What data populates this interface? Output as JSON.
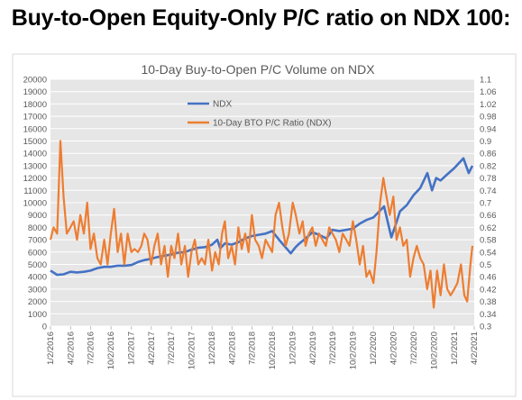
{
  "heading": "Buy-to-Open Equity-Only P/C ratio on NDX 100:",
  "chart_data": {
    "type": "line",
    "title": "10-Day Buy-to-Open P/C Volume on NDX",
    "xlabel": "",
    "ylabel": "",
    "ylim": [
      0,
      20000
    ],
    "y2lim": [
      0.3,
      1.1
    ],
    "yticks": [
      0,
      1000,
      2000,
      3000,
      4000,
      5000,
      6000,
      7000,
      8000,
      9000,
      10000,
      11000,
      12000,
      13000,
      14000,
      15000,
      16000,
      17000,
      18000,
      19000,
      20000
    ],
    "y2ticks": [
      "0.3",
      "0.34",
      "0.38",
      "0.42",
      "0.46",
      "0.5",
      "0.54",
      "0.58",
      "0.62",
      "0.66",
      "0.7",
      "0.74",
      "0.78",
      "0.82",
      "0.86",
      "0.9",
      "0.94",
      "0.98",
      "1.02",
      "1.06",
      "1.1"
    ],
    "xticks": [
      "1/2/2016",
      "4/2/2016",
      "7/2/2016",
      "10/2/2016",
      "1/2/2017",
      "4/2/2017",
      "7/2/2017",
      "10/2/2017",
      "1/2/2018",
      "4/2/2018",
      "7/2/2018",
      "10/2/2018",
      "1/2/2019",
      "4/2/2019",
      "7/2/2019",
      "10/2/2019",
      "1/2/2020",
      "4/2/2020",
      "7/2/2020",
      "10/2/2020",
      "1/2/2021",
      "4/2/2021"
    ],
    "grid": "horizontal",
    "legend_position": "top-left",
    "series": [
      {
        "name": "NDX",
        "axis": "left",
        "color": "#4472C4",
        "x": [
          "1/2/2016",
          "2/1/2016",
          "3/1/2016",
          "4/1/2016",
          "5/1/2016",
          "6/1/2016",
          "7/1/2016",
          "8/1/2016",
          "9/1/2016",
          "10/1/2016",
          "11/1/2016",
          "12/1/2016",
          "1/2/2017",
          "2/1/2017",
          "3/1/2017",
          "4/1/2017",
          "5/1/2017",
          "6/1/2017",
          "7/1/2017",
          "8/1/2017",
          "9/1/2017",
          "10/1/2017",
          "11/1/2017",
          "12/1/2017",
          "1/2/2018",
          "1/26/2018",
          "2/8/2018",
          "3/1/2018",
          "4/1/2018",
          "5/1/2018",
          "6/1/2018",
          "7/1/2018",
          "8/1/2018",
          "9/1/2018",
          "10/1/2018",
          "11/1/2018",
          "12/24/2018",
          "1/15/2019",
          "2/1/2019",
          "3/1/2019",
          "4/1/2019",
          "5/1/2019",
          "6/3/2019",
          "7/1/2019",
          "8/1/2019",
          "9/1/2019",
          "10/1/2019",
          "11/1/2019",
          "12/1/2019",
          "1/2/2020",
          "2/19/2020",
          "3/23/2020",
          "4/15/2020",
          "5/1/2020",
          "6/1/2020",
          "7/1/2020",
          "8/1/2020",
          "9/2/2020",
          "9/23/2020",
          "10/12/2020",
          "11/1/2020",
          "12/1/2020",
          "1/2/2021",
          "2/12/2021",
          "3/8/2021",
          "3/25/2021"
        ],
        "values": [
          4500,
          4150,
          4200,
          4400,
          4350,
          4400,
          4500,
          4700,
          4800,
          4800,
          4900,
          4900,
          4950,
          5200,
          5350,
          5450,
          5600,
          5700,
          5800,
          5950,
          6000,
          6200,
          6350,
          6400,
          6600,
          7000,
          6300,
          6700,
          6600,
          6800,
          7100,
          7300,
          7400,
          7500,
          7700,
          7000,
          5900,
          6400,
          6700,
          7100,
          7600,
          7400,
          7100,
          7800,
          7700,
          7800,
          7900,
          8300,
          8600,
          8800,
          9700,
          7200,
          8400,
          9300,
          9800,
          10600,
          11200,
          12400,
          11000,
          12000,
          11800,
          12300,
          12800,
          13600,
          12400,
          13000
        ]
      },
      {
        "name": "10-Day BTO P/C Ratio (NDX)",
        "axis": "right",
        "color": "#ED7D31",
        "x": [
          "1/2/2016",
          "1/16/2016",
          "2/1/2016",
          "2/16/2016",
          "3/1/2016",
          "3/16/2016",
          "4/1/2016",
          "4/16/2016",
          "5/1/2016",
          "5/16/2016",
          "6/1/2016",
          "6/16/2016",
          "7/1/2016",
          "7/16/2016",
          "8/1/2016",
          "8/16/2016",
          "9/1/2016",
          "9/16/2016",
          "10/1/2016",
          "10/16/2016",
          "11/1/2016",
          "11/16/2016",
          "12/1/2016",
          "12/16/2016",
          "1/2/2017",
          "1/16/2017",
          "2/1/2017",
          "2/16/2017",
          "3/1/2017",
          "3/16/2017",
          "4/1/2017",
          "4/16/2017",
          "5/1/2017",
          "5/16/2017",
          "6/1/2017",
          "6/16/2017",
          "7/1/2017",
          "7/16/2017",
          "8/1/2017",
          "8/16/2017",
          "9/1/2017",
          "9/16/2017",
          "10/1/2017",
          "10/16/2017",
          "11/1/2017",
          "11/16/2017",
          "12/1/2017",
          "12/16/2017",
          "1/2/2018",
          "1/16/2018",
          "2/1/2018",
          "2/16/2018",
          "3/1/2018",
          "3/16/2018",
          "4/1/2018",
          "4/16/2018",
          "5/1/2018",
          "5/16/2018",
          "6/1/2018",
          "6/16/2018",
          "7/1/2018",
          "7/16/2018",
          "8/1/2018",
          "8/16/2018",
          "9/1/2018",
          "9/16/2018",
          "10/1/2018",
          "10/16/2018",
          "11/1/2018",
          "11/16/2018",
          "12/1/2018",
          "12/16/2018",
          "1/2/2019",
          "1/16/2019",
          "2/1/2019",
          "2/16/2019",
          "3/1/2019",
          "3/16/2019",
          "4/1/2019",
          "4/16/2019",
          "5/1/2019",
          "5/16/2019",
          "6/1/2019",
          "6/16/2019",
          "7/1/2019",
          "7/16/2019",
          "8/1/2019",
          "8/16/2019",
          "9/1/2019",
          "9/16/2019",
          "10/1/2019",
          "10/16/2019",
          "11/1/2019",
          "11/16/2019",
          "12/1/2019",
          "12/16/2019",
          "1/2/2020",
          "1/16/2020",
          "2/1/2020",
          "2/16/2020",
          "3/1/2020",
          "3/16/2020",
          "4/1/2020",
          "4/16/2020",
          "5/1/2020",
          "5/16/2020",
          "6/1/2020",
          "6/16/2020",
          "7/1/2020",
          "7/16/2020",
          "8/1/2020",
          "8/16/2020",
          "9/1/2020",
          "9/16/2020",
          "10/1/2020",
          "10/16/2020",
          "11/1/2020",
          "11/16/2020",
          "12/1/2020",
          "12/16/2020",
          "1/2/2021",
          "1/16/2021",
          "2/1/2021",
          "2/16/2021",
          "3/1/2021",
          "3/16/2021",
          "3/25/2021"
        ],
        "values": [
          0.58,
          0.62,
          0.6,
          0.9,
          0.72,
          0.6,
          0.62,
          0.64,
          0.58,
          0.66,
          0.6,
          0.7,
          0.55,
          0.6,
          0.52,
          0.5,
          0.58,
          0.5,
          0.6,
          0.68,
          0.54,
          0.6,
          0.5,
          0.6,
          0.54,
          0.55,
          0.54,
          0.56,
          0.6,
          0.58,
          0.5,
          0.56,
          0.6,
          0.5,
          0.56,
          0.46,
          0.56,
          0.52,
          0.6,
          0.5,
          0.56,
          0.46,
          0.54,
          0.58,
          0.5,
          0.52,
          0.5,
          0.58,
          0.48,
          0.54,
          0.5,
          0.6,
          0.64,
          0.52,
          0.56,
          0.5,
          0.62,
          0.55,
          0.6,
          0.54,
          0.66,
          0.58,
          0.56,
          0.52,
          0.58,
          0.56,
          0.54,
          0.66,
          0.7,
          0.62,
          0.56,
          0.6,
          0.7,
          0.66,
          0.6,
          0.64,
          0.56,
          0.6,
          0.62,
          0.56,
          0.6,
          0.58,
          0.56,
          0.62,
          0.6,
          0.58,
          0.54,
          0.6,
          0.58,
          0.56,
          0.64,
          0.58,
          0.5,
          0.56,
          0.46,
          0.48,
          0.44,
          0.54,
          0.7,
          0.78,
          0.72,
          0.66,
          0.72,
          0.58,
          0.62,
          0.56,
          0.58,
          0.46,
          0.52,
          0.56,
          0.52,
          0.5,
          0.42,
          0.48,
          0.36,
          0.48,
          0.4,
          0.5,
          0.42,
          0.4,
          0.42,
          0.44,
          0.5,
          0.4,
          0.38,
          0.5,
          0.56
        ]
      }
    ]
  }
}
